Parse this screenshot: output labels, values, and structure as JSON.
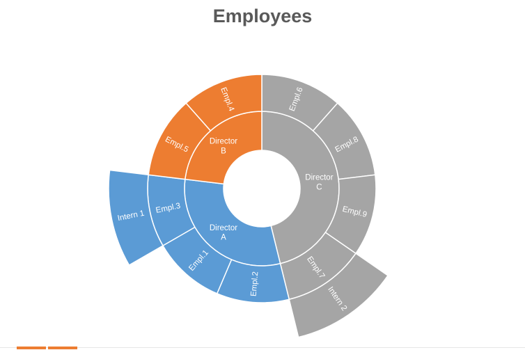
{
  "chart_data": {
    "type": "sunburst",
    "title": "Employees",
    "colors": {
      "Director A": "#5b9bd5",
      "Director B": "#ed7d31",
      "Director C": "#a5a5a5"
    },
    "hierarchy": [
      {
        "name": "Director C",
        "label": "Director C",
        "value": 6,
        "children": [
          {
            "name": "Empl.6",
            "value": 1
          },
          {
            "name": "Empl.8",
            "value": 1
          },
          {
            "name": "Empl.9",
            "value": 1
          },
          {
            "name": "Empl.7",
            "value": 1,
            "children": [
              {
                "name": "Intern 2",
                "value": 1
              }
            ]
          }
        ]
      },
      {
        "name": "Director A",
        "label": "Director A",
        "value": 4,
        "children": [
          {
            "name": "Empl.2",
            "value": 1
          },
          {
            "name": "Empl.1",
            "value": 1
          },
          {
            "name": "Empl.3",
            "value": 1,
            "children": [
              {
                "name": "Intern 1",
                "value": 1
              }
            ]
          }
        ]
      },
      {
        "name": "Director B",
        "label": "Director B",
        "value": 3,
        "children": [
          {
            "name": "Empl.5",
            "value": 1
          },
          {
            "name": "Empl.4",
            "value": 1
          }
        ]
      }
    ]
  }
}
